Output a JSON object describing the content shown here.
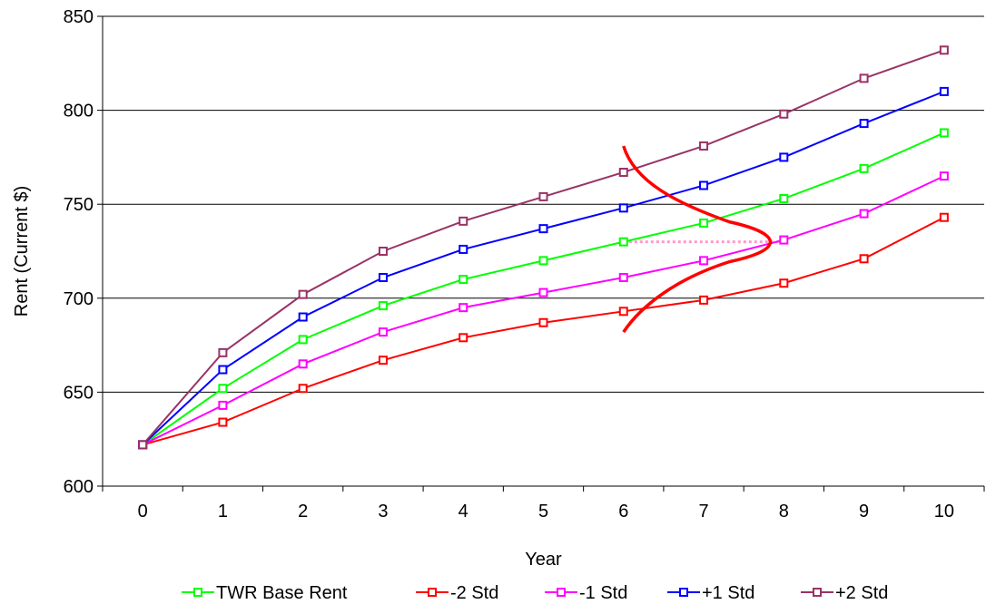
{
  "chart_data": {
    "type": "line",
    "xlabel": "Year",
    "ylabel": "Rent (Current $)",
    "x": [
      0,
      1,
      2,
      3,
      4,
      5,
      6,
      7,
      8,
      9,
      10
    ],
    "ylim": [
      600,
      850
    ],
    "yticks": [
      600,
      650,
      700,
      750,
      800,
      850
    ],
    "grid": "horizontal",
    "legend_position": "bottom",
    "series": [
      {
        "name": "TWR Base Rent",
        "color": "#00ff00",
        "values": [
          622,
          652,
          678,
          696,
          710,
          720,
          730,
          740,
          753,
          769,
          788
        ]
      },
      {
        "name": "-2 Std",
        "color": "#ff0000",
        "values": [
          622,
          634,
          652,
          667,
          679,
          687,
          693,
          699,
          708,
          721,
          743
        ]
      },
      {
        "name": "-1 Std",
        "color": "#ff00ff",
        "values": [
          622,
          643,
          665,
          682,
          695,
          703,
          711,
          720,
          731,
          745,
          765
        ]
      },
      {
        "name": "+1 Std",
        "color": "#0000ff",
        "values": [
          622,
          662,
          690,
          711,
          726,
          737,
          748,
          760,
          775,
          793,
          810
        ]
      },
      {
        "name": "+2 Std",
        "color": "#993366",
        "values": [
          622,
          671,
          702,
          725,
          741,
          754,
          767,
          781,
          798,
          817,
          832
        ]
      }
    ],
    "annotations": [
      {
        "kind": "distribution-curve",
        "color": "#ff0000",
        "x_start": 6,
        "x_peak": 8,
        "y_range": [
          682,
          781
        ],
        "y_peak": 730
      },
      {
        "kind": "dotted-reference-line",
        "color": "#ff99cc",
        "x_range": [
          6,
          8
        ],
        "y": 730
      }
    ]
  }
}
